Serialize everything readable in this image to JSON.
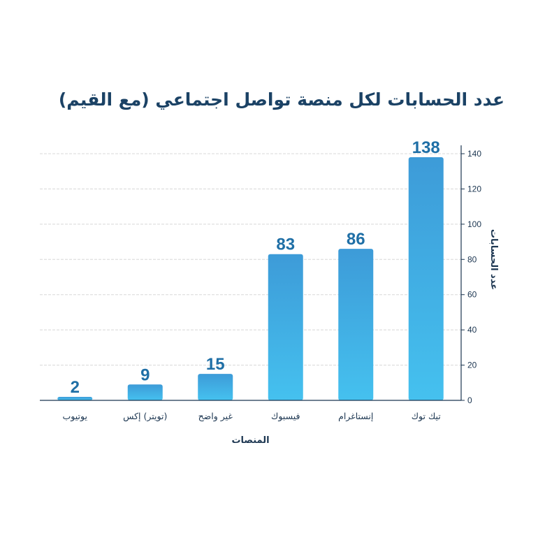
{
  "chart_data": {
    "type": "bar",
    "title": "عدد الحسابات لكل منصة تواصل اجتماعي (مع القيم)",
    "xlabel": "المنصات",
    "ylabel": "عدد الحسابات",
    "categories": [
      "تيك توك",
      "إنستاغرام",
      "فيسبوك",
      "غير واضح",
      "(تويتر) إكس",
      "يوتيوب"
    ],
    "values": [
      138,
      86,
      83,
      15,
      9,
      2
    ],
    "ylim": [
      0,
      140
    ],
    "yticks": [
      0,
      20,
      40,
      60,
      80,
      100,
      120,
      140
    ],
    "y_axis_side": "right",
    "grid": true,
    "colors": {
      "bar_top": "#3d9bd8",
      "bar_bottom": "#45c1ef",
      "value_label": "#1f6fa6",
      "title": "#1b4265",
      "grid": "#d8d8d8"
    }
  }
}
